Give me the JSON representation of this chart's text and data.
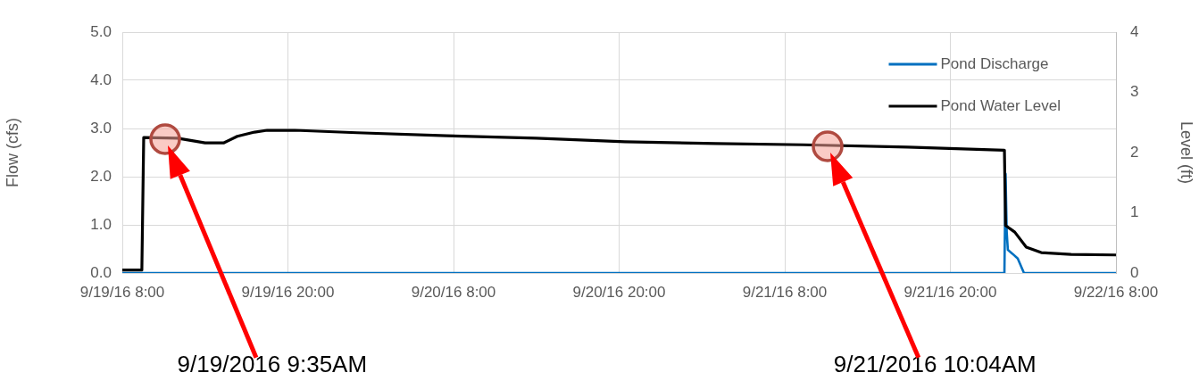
{
  "chart_data": {
    "type": "line",
    "ylabel": "Flow (cfs)",
    "y2label": "Level (ft)",
    "xlim": [
      "2016-09-19T08:00",
      "2016-09-22T08:00"
    ],
    "xticks": [
      {
        "value": "2016-09-19T08:00",
        "label": "9/19/16 8:00"
      },
      {
        "value": "2016-09-19T20:00",
        "label": "9/19/16 20:00"
      },
      {
        "value": "2016-09-20T08:00",
        "label": "9/20/16 8:00"
      },
      {
        "value": "2016-09-20T20:00",
        "label": "9/20/16 20:00"
      },
      {
        "value": "2016-09-21T08:00",
        "label": "9/21/16 8:00"
      },
      {
        "value": "2016-09-21T20:00",
        "label": "9/21/16 20:00"
      },
      {
        "value": "2016-09-22T08:00",
        "label": "9/22/16 8:00"
      }
    ],
    "ylim": [
      0,
      5
    ],
    "yticks": [
      {
        "value": 0,
        "label": "0.0"
      },
      {
        "value": 1,
        "label": "1.0"
      },
      {
        "value": 2,
        "label": "2.0"
      },
      {
        "value": 3,
        "label": "3.0"
      },
      {
        "value": 4,
        "label": "4.0"
      },
      {
        "value": 5,
        "label": "5.0"
      }
    ],
    "y2lim": [
      0,
      4
    ],
    "y2ticks": [
      0,
      1,
      2,
      3,
      4
    ],
    "grid": true,
    "legend": "top right",
    "line_style": "solid",
    "series": [
      {
        "name": "Pond Discharge",
        "color": "#0070c0",
        "x": [
          "2016-09-19T08:00",
          "2016-09-21T23:55",
          "2016-09-22T00:00",
          "2016-09-22T00:05",
          "2016-09-22T00:10",
          "2016-09-22T00:30",
          "2016-09-22T00:53",
          "2016-09-22T01:20",
          "2016-09-22T08:00"
        ],
        "values": [
          0,
          0,
          2.06,
          0.85,
          0.48,
          0.4,
          0.3,
          0,
          0
        ]
      },
      {
        "name": "Pond Water Level",
        "color": "#000000",
        "axis": "y2",
        "x": [
          "2016-09-19T08:00",
          "2016-09-19T09:25",
          "2016-09-19T09:33",
          "2016-09-19T12:00",
          "2016-09-19T14:00",
          "2016-09-19T15:20",
          "2016-09-19T16:20",
          "2016-09-19T17:35",
          "2016-09-19T18:30",
          "2016-09-19T20:30",
          "2016-09-20T01:00",
          "2016-09-20T07:30",
          "2016-09-20T14:00",
          "2016-09-20T20:25",
          "2016-09-21T03:00",
          "2016-09-21T09:20",
          "2016-09-21T16:55",
          "2016-09-21T23:55",
          "2016-09-22T00:00",
          "2016-09-22T00:40",
          "2016-09-22T01:30",
          "2016-09-22T02:35",
          "2016-09-22T04:45",
          "2016-09-22T08:00"
        ],
        "values": [
          0.05,
          0.05,
          2.25,
          2.24,
          2.16,
          2.16,
          2.27,
          2.34,
          2.37,
          2.37,
          2.33,
          2.28,
          2.24,
          2.18,
          2.15,
          2.13,
          2.09,
          2.04,
          0.79,
          0.68,
          0.43,
          0.34,
          0.31,
          0.3
        ]
      }
    ],
    "annotations": [
      "9/19/2016 9:35AM",
      "9/21/2016 10:04AM"
    ]
  }
}
